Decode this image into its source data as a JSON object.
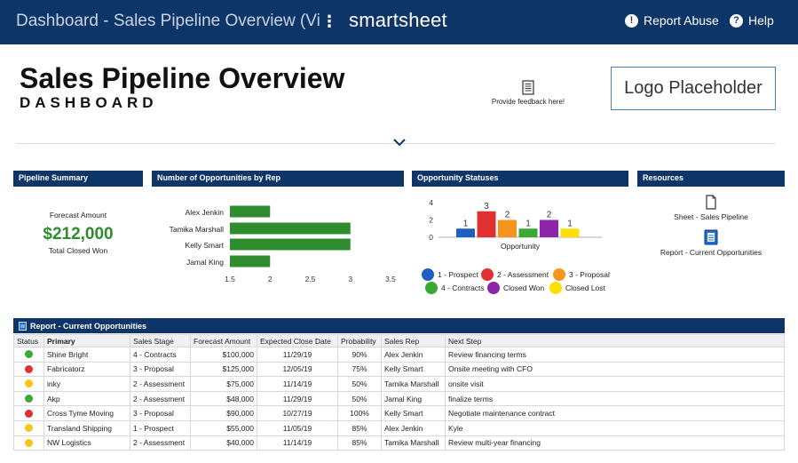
{
  "topbar": {
    "title": "Dashboard - Sales Pipeline Overview (View Only)",
    "brand": "smartsheet",
    "report_abuse": "Report Abuse",
    "help": "Help"
  },
  "header": {
    "title": "Sales Pipeline Overview",
    "subtitle": "DASHBOARD",
    "feedback": "Provide feedback here!",
    "logo_placeholder": "Logo Placeholder"
  },
  "panels": {
    "pipeline_summary": "Pipeline Summary",
    "opps_by_rep": "Number of Opportunities by Rep",
    "statuses": "Opportunity Statuses",
    "resources": "Resources"
  },
  "summary": {
    "label": "Forecast Amount",
    "amount": "$212,000",
    "caption": "Total Closed Won"
  },
  "resources": {
    "items": [
      "Sheet - Sales Pipeline",
      "Report - Current Opportunities"
    ]
  },
  "chart_data": [
    {
      "type": "bar",
      "orientation": "horizontal",
      "categories": [
        "Alex Jenkin",
        "Tamika Marshall",
        "Kelly Smart",
        "Jamal King"
      ],
      "values": [
        2,
        3,
        3,
        2
      ],
      "xlim": [
        1.5,
        3.5
      ],
      "xticks": [
        "1.5",
        "2",
        "2.5",
        "3",
        "3.5"
      ],
      "color": "#2e8b2e"
    },
    {
      "type": "bar",
      "categories": [
        "1 - Prospect",
        "2 - Assessment",
        "3 - Proposal",
        "4 - Contracts",
        "Closed Won",
        "Closed Lost"
      ],
      "values": [
        1,
        3,
        2,
        1,
        2,
        1
      ],
      "colors": [
        "#1f5fc4",
        "#e03030",
        "#f7941d",
        "#3aaa35",
        "#8e24aa",
        "#ffe000"
      ],
      "yticks": [
        "0",
        "2",
        "4"
      ],
      "ylim": [
        0,
        4
      ],
      "xlabel": "Opportunity",
      "legend": "bottom"
    }
  ],
  "report": {
    "title": "Report - Current Opportunities",
    "columns": [
      "Status",
      "Primary",
      "Sales Stage",
      "Forecast Amount",
      "Expected Close Date",
      "Probability",
      "Sales Rep",
      "Next Step"
    ],
    "rows": [
      {
        "status": "#3aaa35",
        "primary": "Shine Bright",
        "stage": "4 - Contracts",
        "amount": "$100,000",
        "close": "11/29/19",
        "prob": "90%",
        "rep": "Alex Jenkin",
        "next": "Review financing terms"
      },
      {
        "status": "#e03030",
        "primary": "Fabricatorz",
        "stage": "3 - Proposal",
        "amount": "$125,000",
        "close": "12/05/19",
        "prob": "75%",
        "rep": "Kelly Smart",
        "next": "Onsite meeting with CFO"
      },
      {
        "status": "#f5c518",
        "primary": "inky",
        "stage": "2 - Assessment",
        "amount": "$75,000",
        "close": "11/14/19",
        "prob": "50%",
        "rep": "Tamika Marshall",
        "next": "onsite visit"
      },
      {
        "status": "#3aaa35",
        "primary": "Akp",
        "stage": "2 - Assessment",
        "amount": "$48,000",
        "close": "11/29/19",
        "prob": "50%",
        "rep": "Jamal King",
        "next": "finalize terms"
      },
      {
        "status": "#e03030",
        "primary": "Cross Tyme Moving",
        "stage": "3 - Proposal",
        "amount": "$90,000",
        "close": "10/27/19",
        "prob": "100%",
        "rep": "Kelly Smart",
        "next": "Negotiate maintenance contract"
      },
      {
        "status": "#f5c518",
        "primary": "Transland Shipping",
        "stage": "1 - Prospect",
        "amount": "$55,000",
        "close": "11/05/19",
        "prob": "85%",
        "rep": "Alex Jenkin",
        "next": "Kyle"
      },
      {
        "status": "#f5c518",
        "primary": "NW Logistics",
        "stage": "2 - Assessment",
        "amount": "$40,000",
        "close": "11/14/19",
        "prob": "85%",
        "rep": "Tamika Marshall",
        "next": "Review multi-year financing"
      }
    ]
  }
}
